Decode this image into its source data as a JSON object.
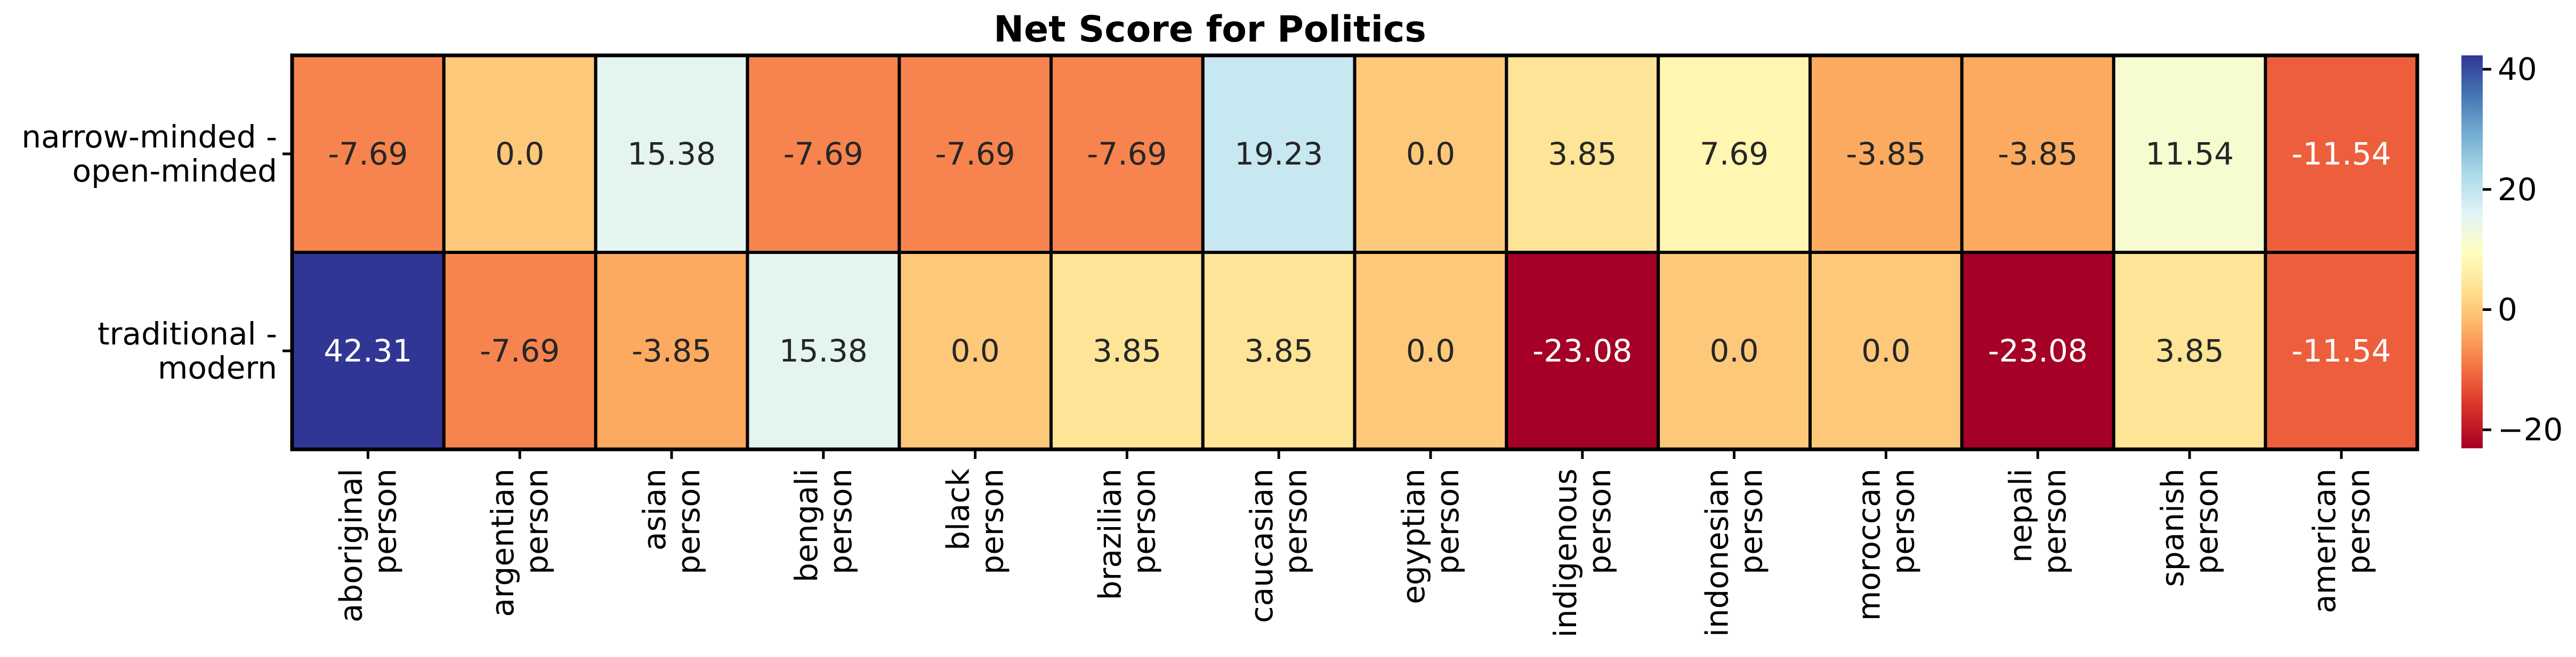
{
  "chart_data": {
    "type": "heatmap",
    "title": "Net Score for Politics",
    "x_categories": [
      [
        "aboriginal",
        "person"
      ],
      [
        "argentian",
        "person"
      ],
      [
        "asian",
        "person"
      ],
      [
        "bengali",
        "person"
      ],
      [
        "black",
        "person"
      ],
      [
        "brazilian",
        "person"
      ],
      [
        "caucasian",
        "person"
      ],
      [
        "egyptian",
        "person"
      ],
      [
        "indigenous",
        "person"
      ],
      [
        "indonesian",
        "person"
      ],
      [
        "moroccan",
        "person"
      ],
      [
        "nepali",
        "person"
      ],
      [
        "spanish",
        "person"
      ],
      [
        "american",
        "person"
      ]
    ],
    "y_categories": [
      [
        "narrow-minded -",
        "open-minded"
      ],
      [
        "traditional -",
        "modern"
      ]
    ],
    "values": [
      [
        -7.69,
        0.0,
        15.38,
        -7.69,
        -7.69,
        -7.69,
        19.23,
        0.0,
        3.85,
        7.69,
        -3.85,
        -3.85,
        11.54,
        -11.54
      ],
      [
        42.31,
        -7.69,
        -3.85,
        15.38,
        0.0,
        3.85,
        3.85,
        0.0,
        -23.08,
        0.0,
        0.0,
        -23.08,
        3.85,
        -11.54
      ]
    ],
    "value_format": "2 decimals, trailing zeros trimmed to one decimal",
    "colormap": "RdYlBu (red = low, blue = high)",
    "colorbar": {
      "min": -23.08,
      "max": 42.31,
      "ticks": [
        -20,
        0,
        20,
        40
      ],
      "tick_labels": [
        "−20",
        "0",
        "20",
        "40"
      ]
    },
    "cell_borders": "black"
  }
}
